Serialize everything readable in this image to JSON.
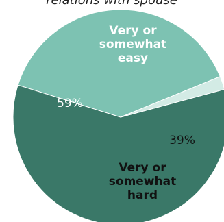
{
  "chart_data": {
    "type": "pie",
    "title": "relations with spouse",
    "slices": [
      {
        "label_lines": [
          "Very or",
          "somewhat",
          "easy"
        ],
        "value": 59,
        "value_label": "59%",
        "color": "#3a7868",
        "label_color": "#ffffff",
        "value_color": "#ffffff"
      },
      {
        "label_lines": [
          "Very or",
          "somewhat",
          "hard"
        ],
        "value": 39,
        "value_label": "39%",
        "color": "#7dc2b2",
        "label_color": "#111111",
        "value_color": "#111111"
      },
      {
        "label_lines": [],
        "value": 2,
        "value_label": "",
        "color": "#d3ebe5",
        "label_color": "#111111",
        "value_color": "#111111"
      }
    ]
  }
}
